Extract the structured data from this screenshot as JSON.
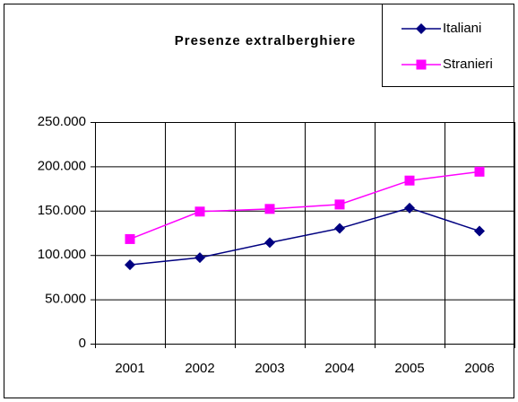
{
  "chart_data": {
    "type": "line",
    "title": "Presenze extralberghiere",
    "categories": [
      "2001",
      "2002",
      "2003",
      "2004",
      "2005",
      "2006"
    ],
    "series": [
      {
        "name": "Italiani",
        "color": "#000080",
        "marker": "diamond",
        "values": [
          89000,
          97000,
          114000,
          130000,
          153000,
          127000
        ]
      },
      {
        "name": "Stranieri",
        "color": "#ff00ff",
        "marker": "square",
        "values": [
          118000,
          149000,
          152000,
          157000,
          184000,
          194000
        ]
      }
    ],
    "ylim": [
      0,
      250000
    ],
    "yticks": [
      0,
      {
        "value": 50000,
        "label": "50.000"
      },
      {
        "value": 100000,
        "label": "100.000"
      },
      {
        "value": 150000,
        "label": "150.000"
      },
      {
        "value": 200000,
        "label": "200.000"
      },
      {
        "value": 250000,
        "label": "250.000"
      }
    ],
    "grid": true,
    "legend": "top-right"
  }
}
